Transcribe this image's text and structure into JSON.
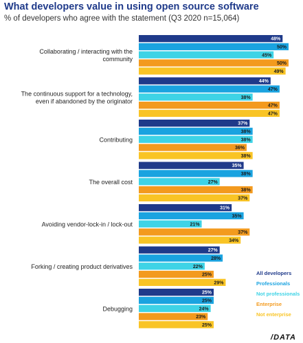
{
  "header": {
    "title": "What developers value in using open source software",
    "subtitle": "% of developers who agree with the statement (Q3 2020 n=15,064)"
  },
  "logo": "/DATA",
  "legend": [
    {
      "label": "All developers",
      "color": "#1f3a8a"
    },
    {
      "label": "Professionals",
      "color": "#1aa3e0"
    },
    {
      "label": "Not professionals",
      "color": "#3ed3e6"
    },
    {
      "label": "Enterprise",
      "color": "#f39a1e"
    },
    {
      "label": "Not enterprise",
      "color": "#f9c425"
    }
  ],
  "chart_data": {
    "type": "bar",
    "orientation": "horizontal",
    "title": "What developers value in using open source software",
    "subtitle": "% of developers who agree with the statement (Q3 2020 n=15,064)",
    "unit": "%",
    "categories": [
      [
        "Collaborating / interacting with the",
        "community"
      ],
      [
        "The continuous support for a technology,",
        "even if abandoned by the originator"
      ],
      [
        "Contributing"
      ],
      [
        "The overall cost"
      ],
      [
        "Avoiding vendor-lock-in / lock-out"
      ],
      [
        "Forking / creating product derivatives"
      ],
      [
        "Debugging"
      ]
    ],
    "series": [
      {
        "name": "All developers",
        "color": "#1f3a8a",
        "values": [
          48,
          44,
          37,
          35,
          31,
          27,
          25
        ]
      },
      {
        "name": "Professionals",
        "color": "#1aa3e0",
        "values": [
          50,
          47,
          38,
          38,
          35,
          28,
          25
        ]
      },
      {
        "name": "Not professionals",
        "color": "#3ed3e6",
        "values": [
          45,
          38,
          38,
          27,
          21,
          22,
          24
        ]
      },
      {
        "name": "Enterprise",
        "color": "#f39a1e",
        "values": [
          50,
          47,
          36,
          38,
          37,
          25,
          23
        ]
      },
      {
        "name": "Not enterprise",
        "color": "#f9c425",
        "values": [
          49,
          47,
          38,
          37,
          34,
          29,
          25
        ]
      }
    ],
    "xlim": [
      0,
      50
    ],
    "grid": false,
    "legend_position": "bottom-right"
  }
}
